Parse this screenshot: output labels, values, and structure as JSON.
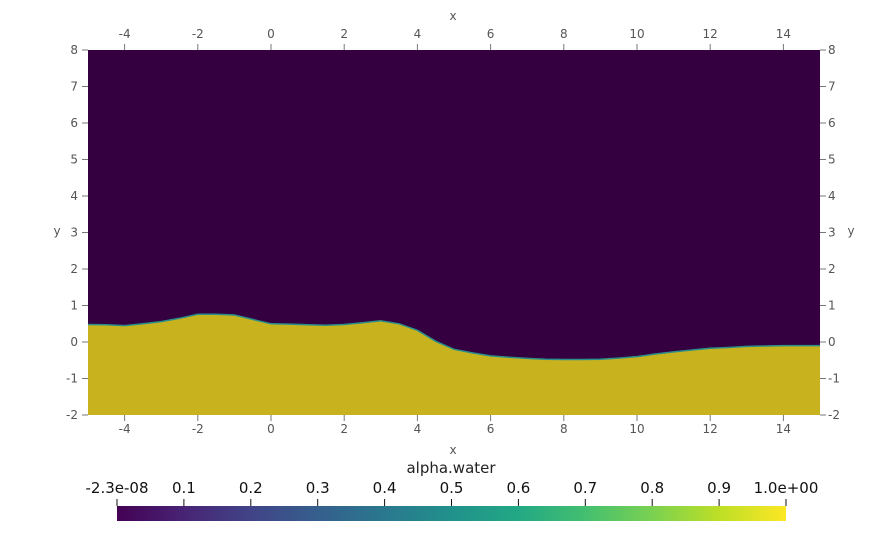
{
  "chart_data": {
    "type": "heatmap",
    "title": "",
    "xlabel": "x",
    "ylabel": "y",
    "xlim": [
      -5,
      15
    ],
    "ylim": [
      -2,
      8
    ],
    "x_ticks": [
      -4,
      -2,
      0,
      2,
      4,
      6,
      8,
      10,
      12,
      14
    ],
    "y_ticks": [
      -2,
      -1,
      0,
      1,
      2,
      3,
      4,
      5,
      6,
      7,
      8
    ],
    "field": "alpha.water",
    "colormap": "viridis",
    "colors": {
      "low": "#350040",
      "high": "#c8b21e"
    },
    "interface": {
      "x": [
        -5,
        -4.5,
        -4,
        -3.5,
        -3,
        -2.5,
        -2,
        -1.5,
        -1,
        -0.5,
        0,
        0.5,
        1,
        1.5,
        2,
        2.5,
        3,
        3.5,
        4,
        4.5,
        5,
        5.5,
        6,
        6.5,
        7,
        7.5,
        8,
        8.5,
        9,
        9.5,
        10,
        10.5,
        11,
        11.5,
        12,
        12.5,
        13,
        13.5,
        14,
        14.5,
        15
      ],
      "y": [
        0.48,
        0.47,
        0.45,
        0.5,
        0.56,
        0.65,
        0.76,
        0.76,
        0.74,
        0.62,
        0.5,
        0.49,
        0.47,
        0.46,
        0.48,
        0.53,
        0.58,
        0.5,
        0.32,
        0.02,
        -0.2,
        -0.3,
        -0.38,
        -0.42,
        -0.45,
        -0.47,
        -0.48,
        -0.48,
        -0.47,
        -0.44,
        -0.4,
        -0.33,
        -0.27,
        -0.22,
        -0.17,
        -0.15,
        -0.12,
        -0.11,
        -0.1,
        -0.1,
        -0.1
      ]
    },
    "colorbar": {
      "title": "alpha.water",
      "tick_labels": [
        "-2.3e-08",
        "0.1",
        "0.2",
        "0.3",
        "0.4",
        "0.5",
        "0.6",
        "0.7",
        "0.8",
        "0.9",
        "1.0e+00"
      ],
      "tick_values": [
        0,
        0.1,
        0.2,
        0.3,
        0.4,
        0.5,
        0.6,
        0.7,
        0.8,
        0.9,
        1.0
      ],
      "range": [
        0,
        1
      ]
    }
  }
}
